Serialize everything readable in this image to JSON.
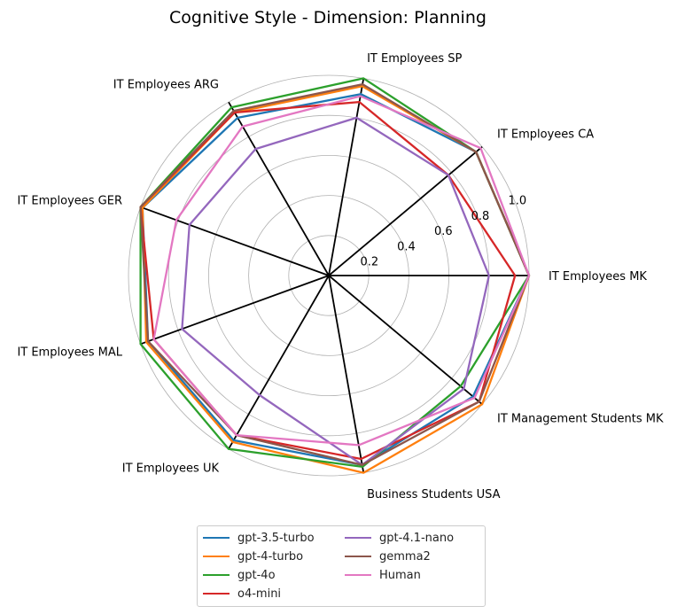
{
  "chart_data": {
    "type": "radar",
    "title": "Cognitive Style - Dimension: Planning",
    "axes": [
      "IT Employees MK",
      "IT Employees CA",
      "IT Employees SP",
      "IT Employees ARG",
      "IT Employees GER",
      "IT Employees MAL",
      "IT Employees UK",
      "Business Students USA",
      "IT Management Students MK"
    ],
    "radial_ticks": [
      "0.2",
      "0.4",
      "0.6",
      "0.8",
      "1.0"
    ],
    "rlim": [
      0,
      1.0
    ],
    "grid": true,
    "legend_position": "bottom-center",
    "series": [
      {
        "name": "gpt-3.5-turbo",
        "color": "#1f77b4",
        "values": [
          1.0,
          0.96,
          0.92,
          0.91,
          0.99,
          0.96,
          0.95,
          0.96,
          0.94
        ]
      },
      {
        "name": "gpt-4-turbo",
        "color": "#ff7f0e",
        "values": [
          1.0,
          0.96,
          0.96,
          0.94,
          0.99,
          0.97,
          0.96,
          1.0,
          1.0
        ]
      },
      {
        "name": "gpt-4o",
        "color": "#2ca02c",
        "values": [
          1.0,
          0.96,
          1.0,
          0.97,
          1.0,
          1.0,
          1.0,
          0.97,
          0.86
        ]
      },
      {
        "name": "o4-mini",
        "color": "#d62728",
        "values": [
          0.93,
          0.78,
          0.88,
          0.94,
          1.0,
          0.93,
          0.92,
          0.93,
          0.98
        ]
      },
      {
        "name": "gpt-4.1-nano",
        "color": "#9467bd",
        "values": [
          0.8,
          0.78,
          0.8,
          0.73,
          0.74,
          0.78,
          0.69,
          0.96,
          0.88
        ]
      },
      {
        "name": "gemma2",
        "color": "#8c564b",
        "values": [
          1.0,
          0.96,
          0.97,
          0.95,
          1.0,
          0.96,
          0.92,
          0.96,
          0.98
        ]
      },
      {
        "name": "Human",
        "color": "#e377c2",
        "values": [
          1.0,
          0.99,
          0.91,
          0.86,
          0.81,
          0.93,
          0.92,
          0.86,
          0.95
        ]
      }
    ]
  }
}
